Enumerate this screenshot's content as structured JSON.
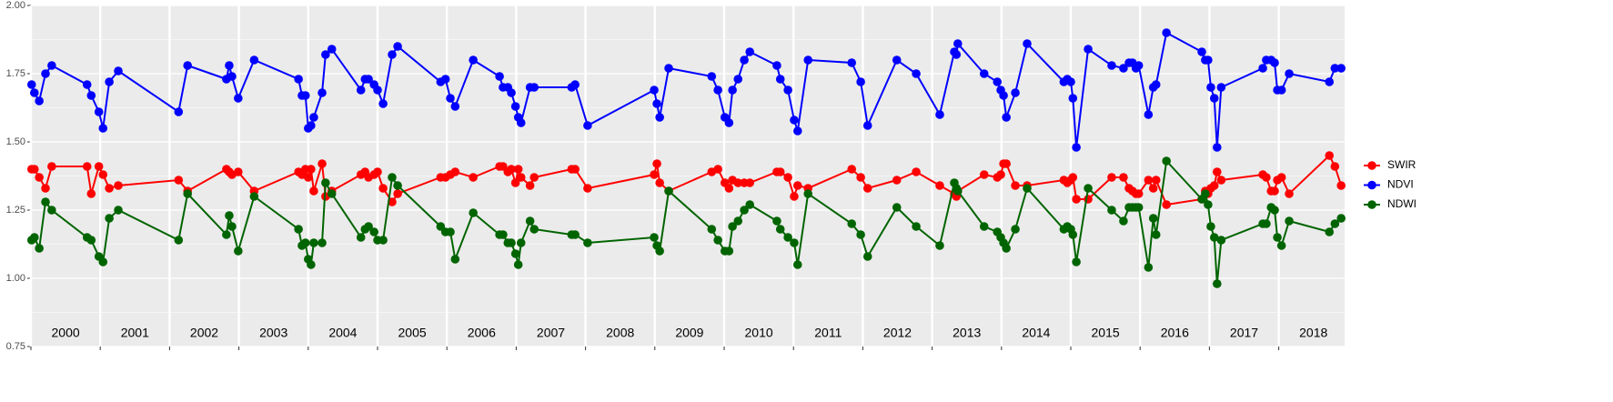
{
  "chart_data": {
    "type": "line",
    "x": [
      2000.01,
      2000.05,
      2000.12,
      2000.21,
      2000.3,
      2000.81,
      2000.87,
      2000.98,
      2001.04,
      2001.13,
      2001.26,
      2002.13,
      2002.26,
      2002.82,
      2002.86,
      2002.9,
      2002.99,
      2003.22,
      2003.86,
      2003.91,
      2003.96,
      2004.0,
      2004.04,
      2004.08,
      2004.2,
      2004.25,
      2004.34,
      2004.76,
      2004.82,
      2004.87,
      2004.95,
      2005.0,
      2005.08,
      2005.21,
      2005.29,
      2005.91,
      2005.98,
      2006.05,
      2006.12,
      2006.38,
      2006.76,
      2006.81,
      2006.88,
      2006.93,
      2006.99,
      2007.03,
      2007.07,
      2007.2,
      2007.26,
      2007.8,
      2007.85,
      2008.03,
      2008.99,
      2009.03,
      2009.07,
      2009.2,
      2009.82,
      2009.91,
      2010.01,
      2010.07,
      2010.12,
      2010.2,
      2010.29,
      2010.37,
      2010.76,
      2010.81,
      2010.92,
      2011.01,
      2011.06,
      2011.21,
      2011.84,
      2011.97,
      2012.07,
      2012.49,
      2012.77,
      2013.11,
      2013.32,
      2013.35,
      2013.37,
      2013.75,
      2013.94,
      2013.99,
      2014.03,
      2014.07,
      2014.2,
      2014.37,
      2014.9,
      2014.95,
      2015.0,
      2015.03,
      2015.08,
      2015.25,
      2015.59,
      2015.76,
      2015.84,
      2015.89,
      2015.94,
      2015.98,
      2016.12,
      2016.19,
      2016.23,
      2016.38,
      2016.89,
      2016.94,
      2016.98,
      2017.02,
      2017.07,
      2017.11,
      2017.17,
      2017.77,
      2017.82,
      2017.89,
      2017.94,
      2017.98,
      2018.04,
      2018.15,
      2018.73,
      2018.81,
      2018.9
    ],
    "series": [
      {
        "name": "SWIR",
        "color": "#ff0000",
        "values": [
          1.4,
          1.4,
          1.37,
          1.33,
          1.41,
          1.41,
          1.31,
          1.41,
          1.38,
          1.33,
          1.34,
          1.36,
          1.32,
          1.4,
          1.39,
          1.38,
          1.39,
          1.32,
          1.39,
          1.38,
          1.4,
          1.37,
          1.4,
          1.32,
          1.42,
          1.3,
          1.32,
          1.38,
          1.39,
          1.37,
          1.38,
          1.39,
          1.33,
          1.28,
          1.31,
          1.37,
          1.37,
          1.38,
          1.39,
          1.37,
          1.41,
          1.41,
          1.39,
          1.4,
          1.35,
          1.4,
          1.37,
          1.34,
          1.37,
          1.4,
          1.4,
          1.33,
          1.38,
          1.42,
          1.35,
          1.32,
          1.39,
          1.4,
          1.35,
          1.33,
          1.36,
          1.35,
          1.35,
          1.35,
          1.39,
          1.39,
          1.37,
          1.3,
          1.34,
          1.33,
          1.4,
          1.37,
          1.33,
          1.36,
          1.39,
          1.34,
          1.31,
          1.3,
          1.32,
          1.38,
          1.37,
          1.38,
          1.42,
          1.42,
          1.34,
          1.34,
          1.36,
          1.35,
          1.36,
          1.37,
          1.29,
          1.29,
          1.37,
          1.37,
          1.33,
          1.32,
          1.31,
          1.31,
          1.36,
          1.33,
          1.36,
          1.27,
          1.29,
          1.32,
          1.31,
          1.33,
          1.34,
          1.39,
          1.36,
          1.38,
          1.37,
          1.32,
          1.32,
          1.36,
          1.37,
          1.31,
          1.45,
          1.41,
          1.34
        ]
      },
      {
        "name": "NDVI",
        "color": "#0000ff",
        "values": [
          1.71,
          1.68,
          1.65,
          1.75,
          1.78,
          1.71,
          1.67,
          1.61,
          1.55,
          1.72,
          1.76,
          1.61,
          1.78,
          1.73,
          1.78,
          1.74,
          1.66,
          1.8,
          1.73,
          1.67,
          1.67,
          1.55,
          1.56,
          1.59,
          1.68,
          1.82,
          1.84,
          1.69,
          1.73,
          1.73,
          1.71,
          1.69,
          1.64,
          1.82,
          1.85,
          1.72,
          1.73,
          1.66,
          1.63,
          1.8,
          1.74,
          1.7,
          1.7,
          1.68,
          1.63,
          1.59,
          1.57,
          1.7,
          1.7,
          1.7,
          1.71,
          1.56,
          1.69,
          1.64,
          1.59,
          1.77,
          1.74,
          1.69,
          1.59,
          1.57,
          1.69,
          1.73,
          1.8,
          1.83,
          1.78,
          1.73,
          1.69,
          1.58,
          1.54,
          1.8,
          1.79,
          1.72,
          1.56,
          1.8,
          1.75,
          1.6,
          1.83,
          1.82,
          1.86,
          1.75,
          1.72,
          1.69,
          1.67,
          1.59,
          1.68,
          1.86,
          1.72,
          1.73,
          1.72,
          1.66,
          1.48,
          1.84,
          1.78,
          1.77,
          1.79,
          1.79,
          1.77,
          1.78,
          1.6,
          1.7,
          1.71,
          1.9,
          1.83,
          1.8,
          1.8,
          1.7,
          1.66,
          1.48,
          1.7,
          1.77,
          1.8,
          1.8,
          1.79,
          1.69,
          1.69,
          1.75,
          1.72,
          1.77,
          1.77
        ]
      },
      {
        "name": "NDWI",
        "color": "#006400",
        "values": [
          1.14,
          1.15,
          1.11,
          1.28,
          1.25,
          1.15,
          1.14,
          1.08,
          1.06,
          1.22,
          1.25,
          1.14,
          1.31,
          1.16,
          1.23,
          1.19,
          1.1,
          1.3,
          1.18,
          1.12,
          1.13,
          1.07,
          1.05,
          1.13,
          1.13,
          1.35,
          1.31,
          1.15,
          1.18,
          1.19,
          1.17,
          1.14,
          1.14,
          1.37,
          1.34,
          1.19,
          1.17,
          1.17,
          1.07,
          1.24,
          1.16,
          1.16,
          1.13,
          1.13,
          1.09,
          1.05,
          1.13,
          1.21,
          1.18,
          1.16,
          1.16,
          1.13,
          1.15,
          1.12,
          1.1,
          1.32,
          1.18,
          1.14,
          1.1,
          1.1,
          1.19,
          1.21,
          1.25,
          1.27,
          1.21,
          1.18,
          1.15,
          1.13,
          1.05,
          1.31,
          1.2,
          1.16,
          1.08,
          1.26,
          1.19,
          1.12,
          1.35,
          1.33,
          1.32,
          1.19,
          1.17,
          1.15,
          1.13,
          1.11,
          1.18,
          1.33,
          1.18,
          1.19,
          1.18,
          1.16,
          1.06,
          1.33,
          1.25,
          1.21,
          1.26,
          1.26,
          1.26,
          1.26,
          1.04,
          1.22,
          1.16,
          1.43,
          1.29,
          1.31,
          1.27,
          1.19,
          1.15,
          0.98,
          1.14,
          1.2,
          1.2,
          1.26,
          1.25,
          1.15,
          1.12,
          1.21,
          1.17,
          1.2,
          1.22
        ]
      }
    ],
    "xlim": [
      2000,
      2018.95
    ],
    "xticks": [
      2000,
      2001,
      2002,
      2003,
      2004,
      2005,
      2006,
      2007,
      2008,
      2009,
      2010,
      2011,
      2012,
      2013,
      2014,
      2015,
      2016,
      2017,
      2018
    ],
    "ylim": [
      0.75,
      2.0
    ],
    "yticks": [
      {
        "value": 0.75,
        "label": "0.75"
      },
      {
        "value": 1.0,
        "label": "1.00"
      },
      {
        "value": 1.25,
        "label": "1.25"
      },
      {
        "value": 1.5,
        "label": "1.50"
      },
      {
        "value": 1.75,
        "label": "1.75"
      },
      {
        "value": 2.0,
        "label": "2.00"
      }
    ],
    "grid": true,
    "legend": "right"
  }
}
